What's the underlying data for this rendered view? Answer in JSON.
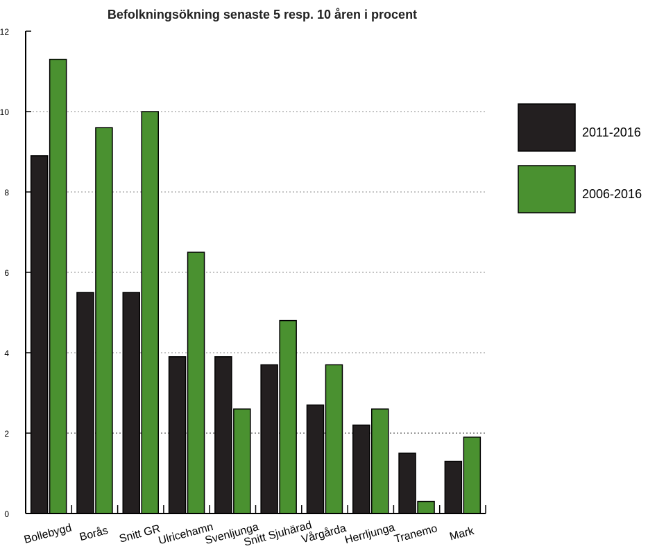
{
  "chart_data": {
    "type": "bar",
    "title": "Befolkningsökning senaste 5 resp. 10 åren i procent",
    "xlabel": "",
    "ylabel": "",
    "ylim": [
      0,
      12
    ],
    "yticks": [
      0,
      2,
      4,
      6,
      8,
      10,
      12
    ],
    "grid": "horizontal dotted lines at 2, 4, 6, 8, 10",
    "legend_position": "right",
    "categories": [
      "Bollebygd",
      "Borås",
      "Snitt GR",
      "Ulricehamn",
      "Svenljunga",
      "Snitt Sjuhärad",
      "Vårgårda",
      "Herrljunga",
      "Tranemo",
      "Mark"
    ],
    "series": [
      {
        "name": "2011-2016",
        "color": "#231f20",
        "values": [
          8.9,
          5.5,
          5.5,
          3.9,
          3.9,
          3.7,
          2.7,
          2.2,
          1.5,
          1.3
        ]
      },
      {
        "name": "2006-2016",
        "color": "#4a9130",
        "values": [
          11.3,
          9.6,
          10.0,
          6.5,
          2.6,
          4.8,
          3.7,
          2.6,
          0.3,
          1.9
        ]
      }
    ]
  }
}
